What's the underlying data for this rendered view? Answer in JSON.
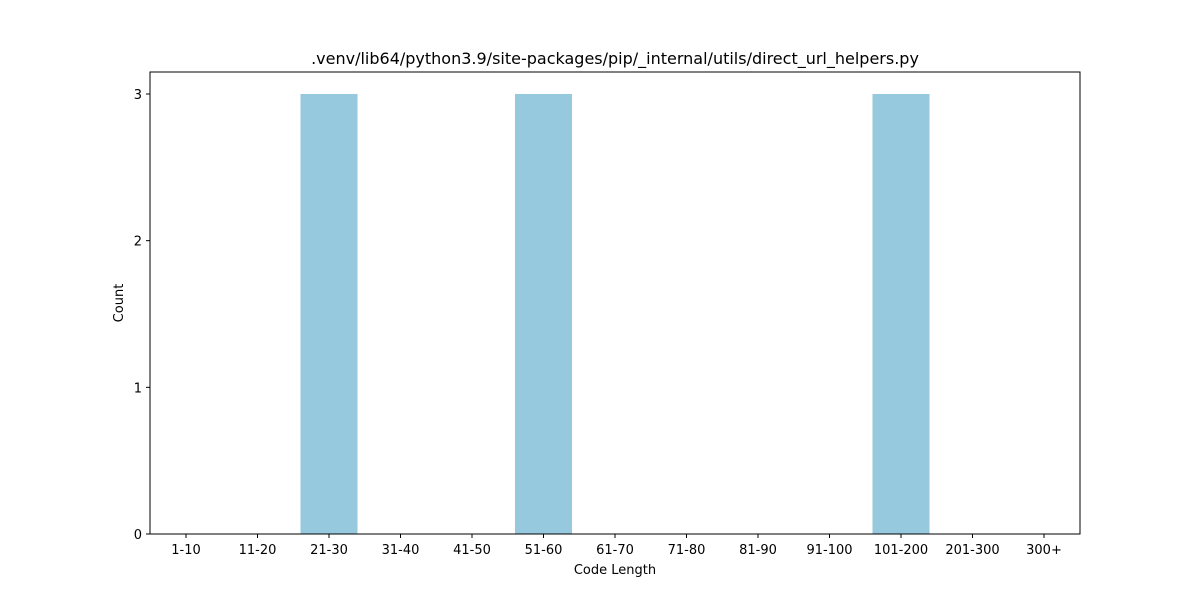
{
  "chart_data": {
    "type": "bar",
    "title": ".venv/lib64/python3.9/site-packages/pip/_internal/utils/direct_url_helpers.py",
    "xlabel": "Code Length",
    "ylabel": "Count",
    "categories": [
      "1-10",
      "11-20",
      "21-30",
      "31-40",
      "41-50",
      "51-60",
      "61-70",
      "71-80",
      "81-90",
      "91-100",
      "101-200",
      "201-300",
      "300+"
    ],
    "values": [
      0,
      0,
      3,
      0,
      0,
      3,
      0,
      0,
      0,
      0,
      3,
      0,
      0
    ],
    "ylim": [
      0,
      3.15
    ],
    "yticks": [
      0,
      1,
      2,
      3
    ],
    "bar_color": "#96c9de",
    "grid": false,
    "legend": "none"
  }
}
